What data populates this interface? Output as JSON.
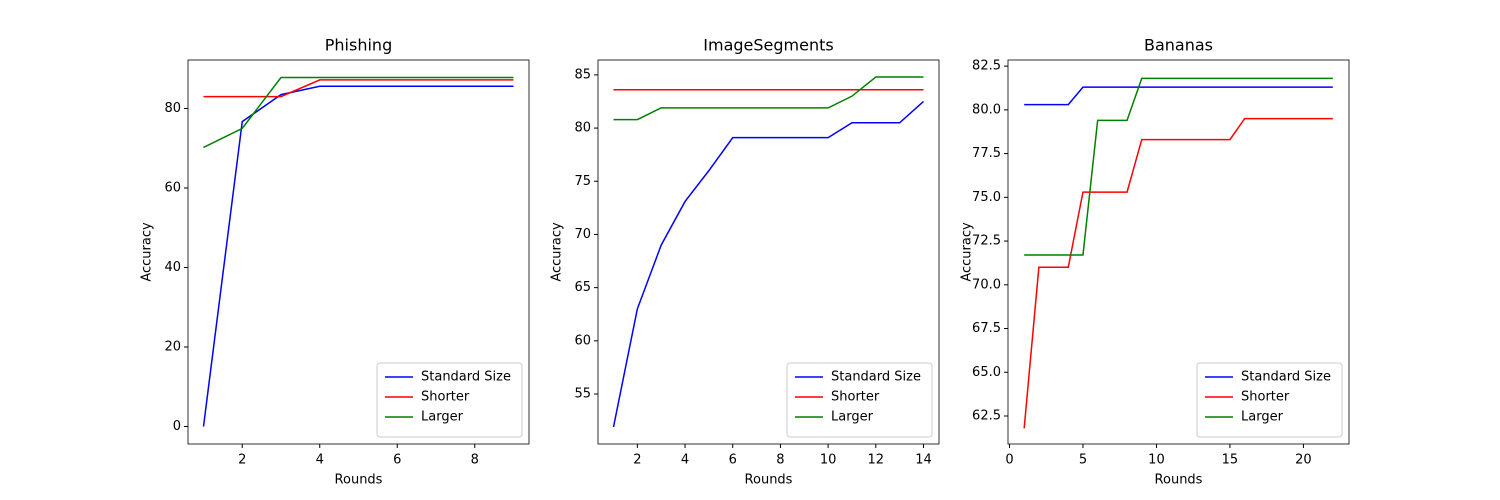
{
  "chart_data": [
    {
      "type": "line",
      "title": "Phishing",
      "xlabel": "Rounds",
      "ylabel": "Accuracy",
      "x": [
        1,
        2,
        3,
        4,
        5,
        6,
        7,
        8,
        9
      ],
      "series": [
        {
          "name": "Standard Size",
          "color": "#0000ff",
          "values": [
            0,
            76.7,
            83.5,
            85.6,
            85.6,
            85.6,
            85.6,
            85.6,
            85.6
          ]
        },
        {
          "name": "Shorter",
          "color": "#ff0000",
          "values": [
            83.0,
            83.0,
            83.0,
            87.2,
            87.2,
            87.2,
            87.2,
            87.2,
            87.2
          ]
        },
        {
          "name": "Larger",
          "color": "#008000",
          "values": [
            70.2,
            75.0,
            87.8,
            87.8,
            87.8,
            87.8,
            87.8,
            87.8,
            87.8
          ]
        }
      ],
      "xlim": [
        0.6,
        9.4
      ],
      "xticks": [
        2,
        4,
        6,
        8
      ],
      "ylim": [
        -4.4,
        92.2
      ],
      "yticks": [
        0,
        20,
        40,
        60,
        80
      ],
      "legend": "lower right"
    },
    {
      "type": "line",
      "title": "ImageSegments",
      "xlabel": "Rounds",
      "ylabel": "Accuracy",
      "x": [
        1,
        2,
        3,
        4,
        5,
        6,
        7,
        8,
        9,
        10,
        11,
        12,
        13,
        14
      ],
      "series": [
        {
          "name": "Standard Size",
          "color": "#0000ff",
          "values": [
            51.9,
            63.0,
            69.0,
            73.1,
            76.0,
            79.1,
            79.1,
            79.1,
            79.1,
            79.1,
            80.5,
            80.5,
            80.5,
            82.5
          ]
        },
        {
          "name": "Shorter",
          "color": "#ff0000",
          "values": [
            83.6,
            83.6,
            83.6,
            83.6,
            83.6,
            83.6,
            83.6,
            83.6,
            83.6,
            83.6,
            83.6,
            83.6,
            83.6,
            83.6
          ]
        },
        {
          "name": "Larger",
          "color": "#008000",
          "values": [
            80.8,
            80.8,
            81.9,
            81.9,
            81.9,
            81.9,
            81.9,
            81.9,
            81.9,
            81.9,
            83.0,
            84.8,
            84.8,
            84.8
          ]
        }
      ],
      "xlim": [
        0.35,
        14.65
      ],
      "xticks": [
        2,
        4,
        6,
        8,
        10,
        12,
        14
      ],
      "ylim": [
        50.3,
        86.4
      ],
      "yticks": [
        55,
        60,
        65,
        70,
        75,
        80,
        85
      ],
      "legend": "lower right"
    },
    {
      "type": "line",
      "title": "Bananas",
      "xlabel": "Rounds",
      "ylabel": "Accuracy",
      "x": [
        1,
        2,
        3,
        4,
        5,
        6,
        7,
        8,
        9,
        10,
        11,
        12,
        13,
        14,
        15,
        16,
        17,
        18,
        19,
        20,
        21,
        22
      ],
      "series": [
        {
          "name": "Standard Size",
          "color": "#0000ff",
          "values": [
            80.3,
            80.3,
            80.3,
            80.3,
            81.3,
            81.3,
            81.3,
            81.3,
            81.3,
            81.3,
            81.3,
            81.3,
            81.3,
            81.3,
            81.3,
            81.3,
            81.3,
            81.3,
            81.3,
            81.3,
            81.3,
            81.3
          ]
        },
        {
          "name": "Shorter",
          "color": "#ff0000",
          "values": [
            61.8,
            71.0,
            71.0,
            71.0,
            75.3,
            75.3,
            75.3,
            75.3,
            78.3,
            78.3,
            78.3,
            78.3,
            78.3,
            78.3,
            78.3,
            79.5,
            79.5,
            79.5,
            79.5,
            79.5,
            79.5,
            79.5
          ]
        },
        {
          "name": "Larger",
          "color": "#008000",
          "values": [
            71.7,
            71.7,
            71.7,
            71.7,
            71.7,
            79.4,
            79.4,
            79.4,
            81.8,
            81.8,
            81.8,
            81.8,
            81.8,
            81.8,
            81.8,
            81.8,
            81.8,
            81.8,
            81.8,
            81.8,
            81.8,
            81.8
          ]
        }
      ],
      "xlim": [
        -0.1,
        23.1
      ],
      "xticks": [
        0,
        5,
        10,
        15,
        20
      ],
      "ylim": [
        60.9,
        82.85
      ],
      "yticks": [
        62.5,
        65,
        67.5,
        70,
        72.5,
        75,
        77.5,
        80,
        82.5
      ],
      "ytick_labels_note_unused": null,
      "legend": "lower right"
    }
  ]
}
